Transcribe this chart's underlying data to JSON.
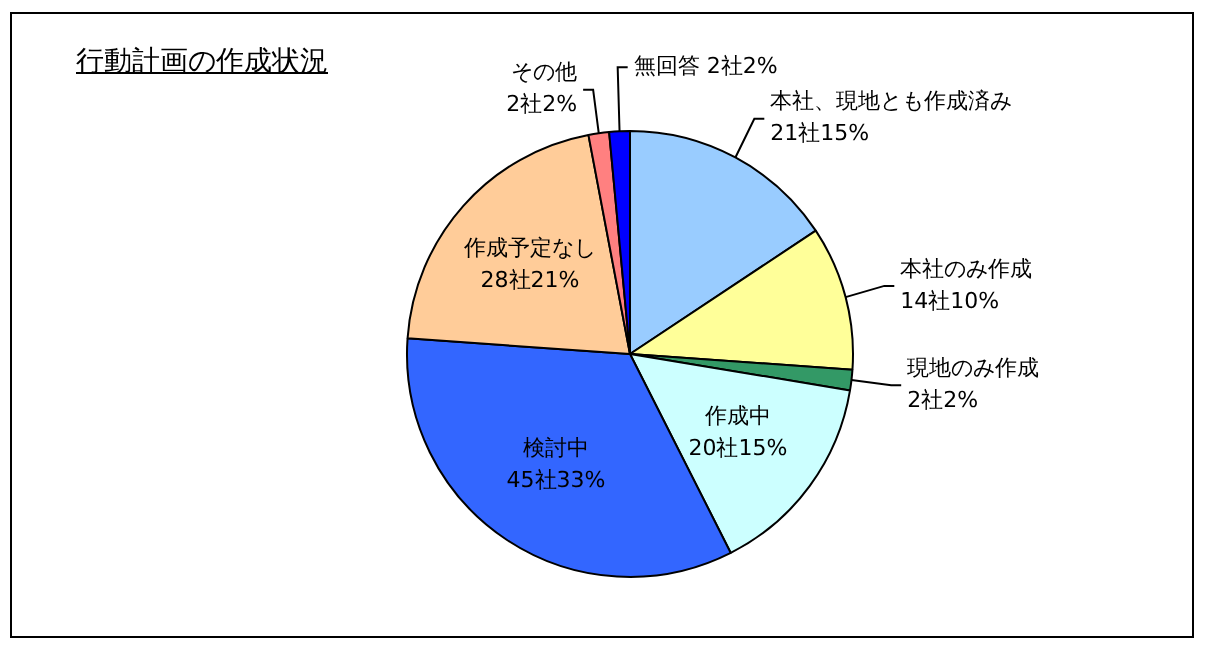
{
  "chart_data": {
    "type": "pie",
    "title": "行動計画の作成状況",
    "categories": [
      "本社、現地とも作成済み",
      "本社のみ作成",
      "現地のみ作成",
      "作成中",
      "検討中",
      "作成予定なし",
      "その他",
      "無回答"
    ],
    "values": [
      21,
      14,
      2,
      20,
      45,
      28,
      2,
      2
    ],
    "value_labels": [
      "21社15%",
      "14社10%",
      "2社2%",
      "20社15%",
      "45社33%",
      "28社21%",
      "2社2%",
      "2社2%"
    ],
    "colors": [
      "#99ccff",
      "#ffff99",
      "#339966",
      "#ccffff",
      "#3366ff",
      "#ffcc99",
      "#ff8080",
      "#0000ff"
    ],
    "legend": false
  }
}
